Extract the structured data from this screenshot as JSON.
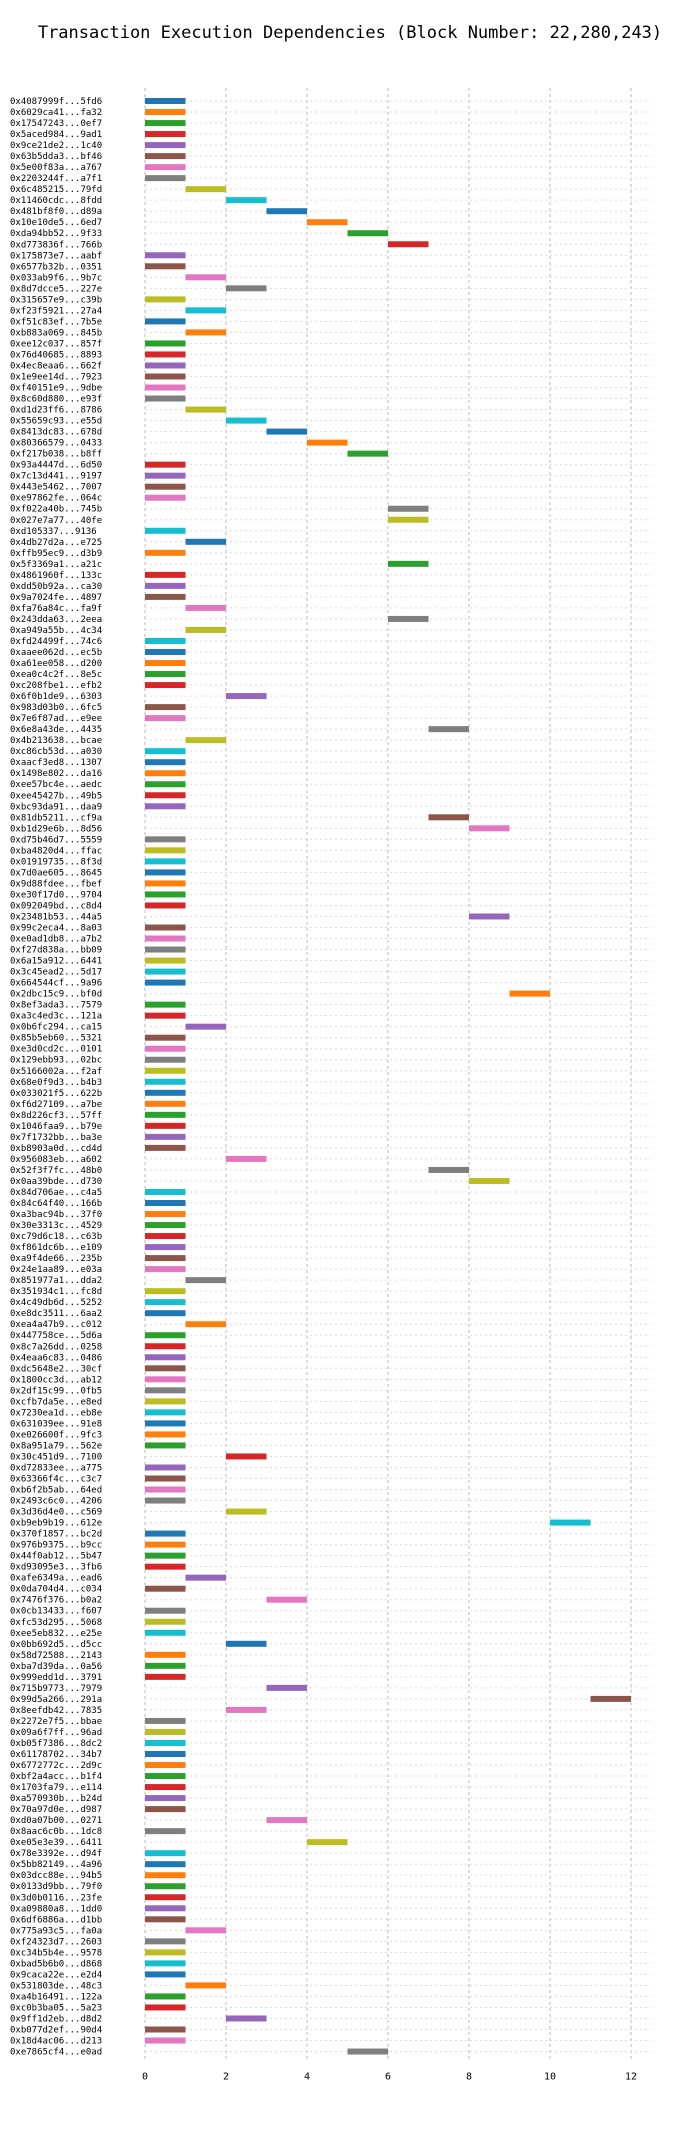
{
  "chart_data": {
    "type": "bar",
    "orientation": "horizontal",
    "title": "Transaction Execution Dependencies (Block Number: 22,280,243)",
    "xlabel": "",
    "ylabel": "",
    "xlim": [
      0,
      12.5
    ],
    "xticks": [
      0,
      2,
      4,
      6,
      8,
      10,
      12
    ],
    "grid": true,
    "colors": [
      "#1f77b4",
      "#ff7f0e",
      "#2ca02c",
      "#d62728",
      "#9467bd",
      "#8c564b",
      "#e377c2",
      "#7f7f7f",
      "#bcbd22",
      "#17becf"
    ],
    "transactions": [
      {
        "label": "0x4087999f...5fd6",
        "start": 0
      },
      {
        "label": "0x6029ca41...fa32",
        "start": 0
      },
      {
        "label": "0x17547243...0ef7",
        "start": 0
      },
      {
        "label": "0x5aced984...9ad1",
        "start": 0
      },
      {
        "label": "0x9ce21de2...1c40",
        "start": 0
      },
      {
        "label": "0x63b5dda3...bf46",
        "start": 0
      },
      {
        "label": "0x5e00f83a...a767",
        "start": 0
      },
      {
        "label": "0x2203244f...a7f1",
        "start": 0
      },
      {
        "label": "0x6c485215...79fd",
        "start": 1
      },
      {
        "label": "0x11460cdc...8fdd",
        "start": 2
      },
      {
        "label": "0x481bf8f0...d89a",
        "start": 3
      },
      {
        "label": "0x10e10de5...6ed7",
        "start": 4
      },
      {
        "label": "0xda94bb52...9f33",
        "start": 5
      },
      {
        "label": "0xd773836f...766b",
        "start": 6
      },
      {
        "label": "0x175873e7...aabf",
        "start": 0
      },
      {
        "label": "0x6577b32b...0351",
        "start": 0
      },
      {
        "label": "0x033ab9f6...9b7c",
        "start": 1
      },
      {
        "label": "0x8d7dcce5...227e",
        "start": 2
      },
      {
        "label": "0x315657e9...c39b",
        "start": 0
      },
      {
        "label": "0xf23f5921...27a4",
        "start": 1
      },
      {
        "label": "0xf51c83ef...7b5e",
        "start": 0
      },
      {
        "label": "0xb883a069...845b",
        "start": 1
      },
      {
        "label": "0xee12c037...857f",
        "start": 0
      },
      {
        "label": "0x76d40685...8893",
        "start": 0
      },
      {
        "label": "0x4ec8eaa6...662f",
        "start": 0
      },
      {
        "label": "0x1e9ee14d...7923",
        "start": 0
      },
      {
        "label": "0xf40151e9...9dbe",
        "start": 0
      },
      {
        "label": "0x8c60d880...e93f",
        "start": 0
      },
      {
        "label": "0xd1d23ff6...8786",
        "start": 1
      },
      {
        "label": "0x55659c93...e55d",
        "start": 2
      },
      {
        "label": "0x8413dc83...678d",
        "start": 3
      },
      {
        "label": "0x80366579...0433",
        "start": 4
      },
      {
        "label": "0xf217b038...b8ff",
        "start": 5
      },
      {
        "label": "0x93a4447d...6d50",
        "start": 0
      },
      {
        "label": "0x7c13d441...9197",
        "start": 0
      },
      {
        "label": "0x443e5462...7007",
        "start": 0
      },
      {
        "label": "0xe97862fe...064c",
        "start": 0
      },
      {
        "label": "0xf022a40b...745b",
        "start": 6
      },
      {
        "label": "0x027e7a77...40fe",
        "start": 6
      },
      {
        "label": "0xd105337...9136",
        "start": 0
      },
      {
        "label": "0x4db27d2a...e725",
        "start": 1
      },
      {
        "label": "0xffb95ec9...d3b9",
        "start": 0
      },
      {
        "label": "0x5f3369a1...a21c",
        "start": 6
      },
      {
        "label": "0x4861960f...133c",
        "start": 0
      },
      {
        "label": "0xdd50b92a...ca30",
        "start": 0
      },
      {
        "label": "0x9a7024fe...4897",
        "start": 0
      },
      {
        "label": "0xfa76a84c...fa9f",
        "start": 1
      },
      {
        "label": "0x243dda63...2eea",
        "start": 6
      },
      {
        "label": "0xa949a55b...4c34",
        "start": 1
      },
      {
        "label": "0xfd24499f...74c6",
        "start": 0
      },
      {
        "label": "0xaaee062d...ec5b",
        "start": 0
      },
      {
        "label": "0xa61ee058...d200",
        "start": 0
      },
      {
        "label": "0xea0c4c2f...8e5c",
        "start": 0
      },
      {
        "label": "0xc208fbe1...efb2",
        "start": 0
      },
      {
        "label": "0x6f0b1de9...6303",
        "start": 2
      },
      {
        "label": "0x983d03b0...6fc5",
        "start": 0
      },
      {
        "label": "0x7e6f87ad...e9ee",
        "start": 0
      },
      {
        "label": "0x6e8a43de...4435",
        "start": 7
      },
      {
        "label": "0x4b213638...bcae",
        "start": 1
      },
      {
        "label": "0xc86cb53d...a030",
        "start": 0
      },
      {
        "label": "0xaacf3ed8...1307",
        "start": 0
      },
      {
        "label": "0x1498e802...da16",
        "start": 0
      },
      {
        "label": "0xee57bc4e...aedc",
        "start": 0
      },
      {
        "label": "0xee45427b...49b5",
        "start": 0
      },
      {
        "label": "0xbc93da91...daa9",
        "start": 0
      },
      {
        "label": "0x81db5211...cf9a",
        "start": 7
      },
      {
        "label": "0xb1d29e6b...8d56",
        "start": 8
      },
      {
        "label": "0xd75b46d7...5559",
        "start": 0
      },
      {
        "label": "0xba4820d4...ffac",
        "start": 0
      },
      {
        "label": "0x01919735...8f3d",
        "start": 0
      },
      {
        "label": "0x7d0ae605...8645",
        "start": 0
      },
      {
        "label": "0x9d88fdee...fbef",
        "start": 0
      },
      {
        "label": "0xe30f17d0...9704",
        "start": 0
      },
      {
        "label": "0x092049bd...c8d4",
        "start": 0
      },
      {
        "label": "0x23481b53...44a5",
        "start": 8
      },
      {
        "label": "0x99c2eca4...8a03",
        "start": 0
      },
      {
        "label": "0xe0ad1db8...a7b2",
        "start": 0
      },
      {
        "label": "0xf27d838a...bb09",
        "start": 0
      },
      {
        "label": "0x6a15a912...6441",
        "start": 0
      },
      {
        "label": "0x3c45ead2...5d17",
        "start": 0
      },
      {
        "label": "0x664544cf...9a96",
        "start": 0
      },
      {
        "label": "0x2dbc15c9...bf0d",
        "start": 9
      },
      {
        "label": "0x8ef3ada3...7579",
        "start": 0
      },
      {
        "label": "0xa3c4ed3c...121a",
        "start": 0
      },
      {
        "label": "0x0b6fc294...ca15",
        "start": 1
      },
      {
        "label": "0x85b5eb60...5321",
        "start": 0
      },
      {
        "label": "0xe3d0cd2c...0101",
        "start": 0
      },
      {
        "label": "0x129ebb93...02bc",
        "start": 0
      },
      {
        "label": "0x5166002a...f2af",
        "start": 0
      },
      {
        "label": "0x68e0f9d3...b4b3",
        "start": 0
      },
      {
        "label": "0x033021f5...622b",
        "start": 0
      },
      {
        "label": "0xf6d27109...a7be",
        "start": 0
      },
      {
        "label": "0x8d226cf3...57ff",
        "start": 0
      },
      {
        "label": "0x1046faa9...b79e",
        "start": 0
      },
      {
        "label": "0x7f1732bb...ba3e",
        "start": 0
      },
      {
        "label": "0xb8903a0d...cd4d",
        "start": 0
      },
      {
        "label": "0x956083eb...a602",
        "start": 2
      },
      {
        "label": "0x52f3f7fc...48b0",
        "start": 7
      },
      {
        "label": "0x0aa39bde...d730",
        "start": 8
      },
      {
        "label": "0x84d706ae...c4a5",
        "start": 0
      },
      {
        "label": "0x84c64f40...166b",
        "start": 0
      },
      {
        "label": "0xa3bac94b...37f0",
        "start": 0
      },
      {
        "label": "0x30e3313c...4529",
        "start": 0
      },
      {
        "label": "0xc79d6c18...c63b",
        "start": 0
      },
      {
        "label": "0xf861dc6b...e109",
        "start": 0
      },
      {
        "label": "0xa9f4de66...235b",
        "start": 0
      },
      {
        "label": "0x24e1aa89...e03a",
        "start": 0
      },
      {
        "label": "0x851977a1...dda2",
        "start": 1
      },
      {
        "label": "0x351934c1...fc8d",
        "start": 0
      },
      {
        "label": "0x4c49db6d...5252",
        "start": 0
      },
      {
        "label": "0xe8dc3511...6aa2",
        "start": 0
      },
      {
        "label": "0xea4a47b9...c012",
        "start": 1
      },
      {
        "label": "0x447758ce...5d6a",
        "start": 0
      },
      {
        "label": "0x8c7a26dd...0258",
        "start": 0
      },
      {
        "label": "0x4eaa6c83...0486",
        "start": 0
      },
      {
        "label": "0xdc5648e2...30cf",
        "start": 0
      },
      {
        "label": "0x1800cc3d...ab12",
        "start": 0
      },
      {
        "label": "0x2df15c99...0fb5",
        "start": 0
      },
      {
        "label": "0xcfb7da5e...e8ed",
        "start": 0
      },
      {
        "label": "0x7230ea1d...eb8e",
        "start": 0
      },
      {
        "label": "0x631039ee...91e8",
        "start": 0
      },
      {
        "label": "0xe026600f...9fc3",
        "start": 0
      },
      {
        "label": "0x8a951a79...562e",
        "start": 0
      },
      {
        "label": "0x30c451d9...7100",
        "start": 2
      },
      {
        "label": "0xd72833ee...a775",
        "start": 0
      },
      {
        "label": "0x63366f4c...c3c7",
        "start": 0
      },
      {
        "label": "0xb6f2b5ab...64ed",
        "start": 0
      },
      {
        "label": "0x2493c6c0...4206",
        "start": 0
      },
      {
        "label": "0x3d36d4e0...c569",
        "start": 2
      },
      {
        "label": "0xb9eb9b19...612e",
        "start": 10
      },
      {
        "label": "0x370f1857...bc2d",
        "start": 0
      },
      {
        "label": "0x976b9375...b9cc",
        "start": 0
      },
      {
        "label": "0x44f0ab12...5b47",
        "start": 0
      },
      {
        "label": "0xd93095e3...3fb6",
        "start": 0
      },
      {
        "label": "0xafe6349a...ead6",
        "start": 1
      },
      {
        "label": "0x0da704d4...c034",
        "start": 0
      },
      {
        "label": "0x7476f376...b0a2",
        "start": 3
      },
      {
        "label": "0x0cb13433...f607",
        "start": 0
      },
      {
        "label": "0xfc53d295...5068",
        "start": 0
      },
      {
        "label": "0xee5eb832...e25e",
        "start": 0
      },
      {
        "label": "0x0bb692d5...d5cc",
        "start": 2
      },
      {
        "label": "0x58d72588...2143",
        "start": 0
      },
      {
        "label": "0xba7d39da...0a56",
        "start": 0
      },
      {
        "label": "0x999edd1d...3791",
        "start": 0
      },
      {
        "label": "0x715b9773...7979",
        "start": 3
      },
      {
        "label": "0x99d5a266...291a",
        "start": 11
      },
      {
        "label": "0x8eefdb42...7835",
        "start": 2
      },
      {
        "label": "0x2272e7f5...bbae",
        "start": 0
      },
      {
        "label": "0x09a6f7ff...96ad",
        "start": 0
      },
      {
        "label": "0xb05f7386...8dc2",
        "start": 0
      },
      {
        "label": "0x61178702...34b7",
        "start": 0
      },
      {
        "label": "0x6772772c...2d9c",
        "start": 0
      },
      {
        "label": "0xbf2a4acc...b1f4",
        "start": 0
      },
      {
        "label": "0x1703fa79...e114",
        "start": 0
      },
      {
        "label": "0xa570930b...b24d",
        "start": 0
      },
      {
        "label": "0x70a97d0e...d987",
        "start": 0
      },
      {
        "label": "0xd0a07b00...0271",
        "start": 3
      },
      {
        "label": "0x8aac6c0b...1dc8",
        "start": 0
      },
      {
        "label": "0xe05e3e39...6411",
        "start": 4
      },
      {
        "label": "0x78e3392e...d94f",
        "start": 0
      },
      {
        "label": "0x5bb82149...4a96",
        "start": 0
      },
      {
        "label": "0x03dcc88e...94b5",
        "start": 0
      },
      {
        "label": "0x0133d9bb...79f0",
        "start": 0
      },
      {
        "label": "0x3d0b0116...23fe",
        "start": 0
      },
      {
        "label": "0xa09880a8...1dd0",
        "start": 0
      },
      {
        "label": "0x6df6886a...d1bb",
        "start": 0
      },
      {
        "label": "0x775a93c5...fa0a",
        "start": 1
      },
      {
        "label": "0xf24323d7...2603",
        "start": 0
      },
      {
        "label": "0xc34b5b4e...9578",
        "start": 0
      },
      {
        "label": "0xbad5b6b0...d868",
        "start": 0
      },
      {
        "label": "0x9caca22e...e2d4",
        "start": 0
      },
      {
        "label": "0x531803de...48c3",
        "start": 1
      },
      {
        "label": "0xa4b16491...122a",
        "start": 0
      },
      {
        "label": "0xc0b3ba05...5a23",
        "start": 0
      },
      {
        "label": "0x9ff1d2eb...d8d2",
        "start": 2
      },
      {
        "label": "0xb077d2ef...90d4",
        "start": 0
      },
      {
        "label": "0x18d4ac06...d213",
        "start": 0
      },
      {
        "label": "0xe7865cf4...e0ad",
        "start": 5
      }
    ]
  }
}
